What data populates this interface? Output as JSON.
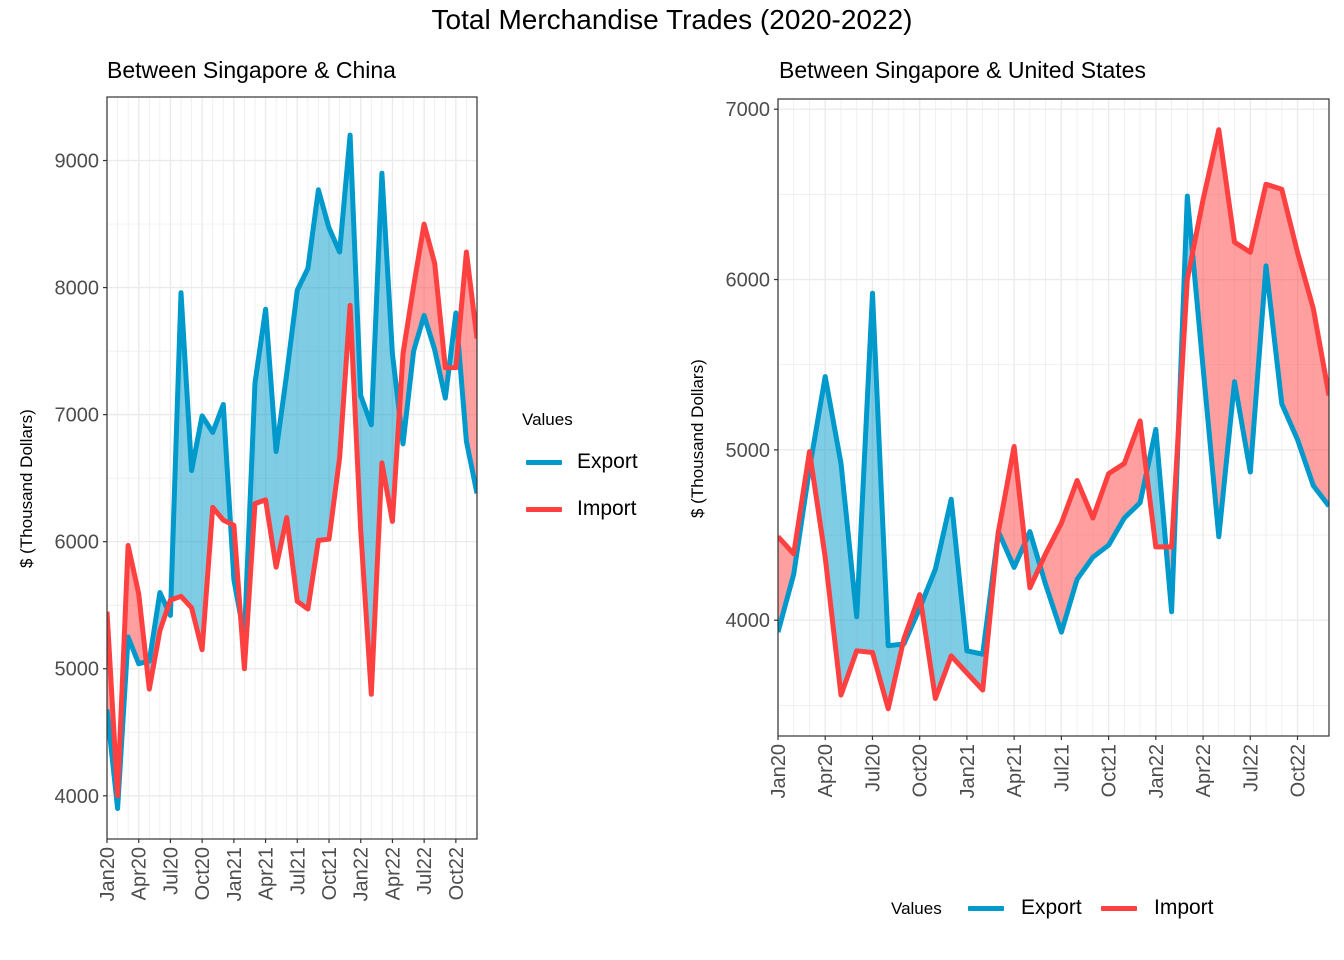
{
  "title": "Total Merchandise Trades (2020-2022)",
  "colors": {
    "export": "#0099CC",
    "import": "#FF4040",
    "grid": "#EBEBEB",
    "axis": "#333333"
  },
  "legend": {
    "title": "Values",
    "items": [
      "Export",
      "Import"
    ]
  },
  "chart_data": [
    {
      "type": "line",
      "title": "Between Singapore & China",
      "xlabel": "",
      "ylabel": "$ (Thousand Dollars)",
      "x_tick_labels": [
        "Jan20",
        "Apr20",
        "Jul20",
        "Oct20",
        "Jan21",
        "Apr21",
        "Jul21",
        "Oct21",
        "Jan22",
        "Apr22",
        "Jul22",
        "Oct22"
      ],
      "y_ticks": [
        4000,
        5000,
        6000,
        7000,
        8000,
        9000
      ],
      "ylim": [
        3660,
        9500
      ],
      "fill_between": true,
      "categories": [
        "Jan20",
        "Feb20",
        "Mar20",
        "Apr20",
        "May20",
        "Jun20",
        "Jul20",
        "Aug20",
        "Sep20",
        "Oct20",
        "Nov20",
        "Dec20",
        "Jan21",
        "Feb21",
        "Mar21",
        "Apr21",
        "May21",
        "Jun21",
        "Jul21",
        "Aug21",
        "Sep21",
        "Oct21",
        "Nov21",
        "Dec21",
        "Jan22",
        "Feb22",
        "Mar22",
        "Apr22",
        "May22",
        "Jun22",
        "Jul22",
        "Aug22",
        "Sep22",
        "Oct22",
        "Nov22",
        "Dec22"
      ],
      "series": [
        {
          "name": "Export",
          "values": [
            4680,
            3900,
            5250,
            5040,
            5060,
            5600,
            5420,
            7960,
            6560,
            6990,
            6860,
            7080,
            5700,
            5250,
            7250,
            7830,
            6710,
            7320,
            7980,
            8150,
            8770,
            8470,
            8280,
            9200,
            7150,
            6920,
            8900,
            7480,
            6770,
            7500,
            7780,
            7510,
            7130,
            7800,
            6790,
            6380
          ]
        },
        {
          "name": "Import",
          "values": [
            5450,
            4000,
            5970,
            5590,
            4840,
            5300,
            5540,
            5570,
            5480,
            5150,
            6270,
            6170,
            6130,
            5000,
            6300,
            6330,
            5800,
            6190,
            5530,
            5470,
            6010,
            6020,
            6660,
            7860,
            6090,
            4800,
            6620,
            6160,
            7480,
            8010,
            8500,
            8190,
            7370,
            7370,
            8280,
            7600
          ]
        }
      ]
    },
    {
      "type": "line",
      "title": "Between Singapore & United States",
      "xlabel": "",
      "ylabel": "$ (Thousand Dollars)",
      "x_tick_labels": [
        "Jan20",
        "Apr20",
        "Jul20",
        "Oct20",
        "Jan21",
        "Apr21",
        "Jul21",
        "Oct21",
        "Jan22",
        "Apr22",
        "Jul22",
        "Oct22"
      ],
      "y_ticks": [
        4000,
        5000,
        6000,
        7000
      ],
      "ylim": [
        3320,
        7060
      ],
      "fill_between": true,
      "categories": [
        "Jan20",
        "Feb20",
        "Mar20",
        "Apr20",
        "May20",
        "Jun20",
        "Jul20",
        "Aug20",
        "Sep20",
        "Oct20",
        "Nov20",
        "Dec20",
        "Jan21",
        "Feb21",
        "Mar21",
        "Apr21",
        "May21",
        "Jun21",
        "Jul21",
        "Aug21",
        "Sep21",
        "Oct21",
        "Nov21",
        "Dec21",
        "Jan22",
        "Feb22",
        "Mar22",
        "Apr22",
        "May22",
        "Jun22",
        "Jul22",
        "Aug22",
        "Sep22",
        "Oct22",
        "Nov22",
        "Dec22"
      ],
      "series": [
        {
          "name": "Export",
          "values": [
            3930,
            4270,
            4890,
            5430,
            4920,
            4020,
            5920,
            3850,
            3860,
            4070,
            4300,
            4710,
            3820,
            3800,
            4520,
            4310,
            4520,
            4210,
            3930,
            4240,
            4370,
            4440,
            4600,
            4690,
            5120,
            4050,
            6490,
            5480,
            4490,
            5400,
            4870,
            6080,
            5270,
            5060,
            4790,
            4670
          ]
        },
        {
          "name": "Import",
          "values": [
            4490,
            4390,
            4990,
            4370,
            3560,
            3820,
            3810,
            3480,
            3890,
            4150,
            3540,
            3790,
            3690,
            3590,
            4520,
            5020,
            4190,
            4390,
            4570,
            4820,
            4600,
            4860,
            4920,
            5170,
            4430,
            4430,
            6000,
            6470,
            6880,
            6220,
            6160,
            6560,
            6530,
            6160,
            5830,
            5320
          ]
        }
      ]
    }
  ]
}
